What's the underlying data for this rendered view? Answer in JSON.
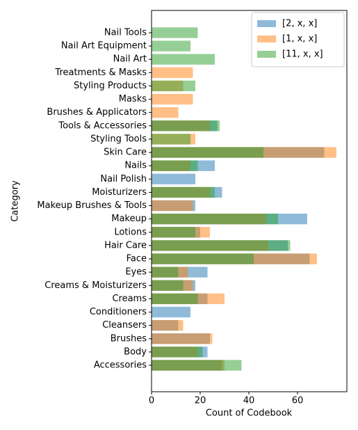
{
  "chart_data": {
    "type": "barh",
    "ylabel": "Category",
    "xlabel": "Count of Codebook",
    "categories": [
      "Accessories",
      "Body",
      "Brushes",
      "Cleansers",
      "Conditioners",
      "Creams",
      "Creams & Moisturizers",
      "Eyes",
      "Face",
      "Hair Care",
      "Lotions",
      "Makeup",
      "Makeup Brushes & Tools",
      "Moisturizers",
      "Nail Polish",
      "Nails",
      "Skin Care",
      "Styling Tools",
      "Tools & Accessories",
      "Brushes & Applicators",
      "Masks",
      "Styling Products",
      "Treatments & Masks",
      "Nail Art",
      "Nail Art Equipment",
      "Nail Tools"
    ],
    "series": [
      {
        "name": "[2, x, x]",
        "color": "#1f77b4",
        "values": [
          29,
          23,
          24,
          11,
          16,
          23,
          18,
          23,
          65,
          56,
          20,
          64,
          18,
          29,
          18,
          26,
          71,
          null,
          27,
          null,
          null,
          null,
          null,
          null,
          null,
          null
        ]
      },
      {
        "name": "[1, x, x]",
        "color": "#ff7f0e",
        "values": [
          30,
          19,
          25,
          13,
          null,
          30,
          17,
          15,
          68,
          48,
          24,
          47,
          17,
          24,
          null,
          16,
          76,
          18,
          24,
          11,
          17,
          13,
          17,
          null,
          null,
          null
        ]
      },
      {
        "name": "[11, x, x]",
        "color": "#2ca02c",
        "values": [
          37,
          21,
          null,
          null,
          null,
          19,
          13,
          11,
          42,
          57,
          18,
          52,
          null,
          26,
          null,
          19,
          46,
          16,
          28,
          null,
          null,
          18,
          null,
          26,
          16,
          19
        ]
      }
    ],
    "xlim": [
      0,
      80.3
    ],
    "xticks": [
      0,
      20,
      40,
      60
    ],
    "legend": "upper right",
    "alpha": 0.5
  }
}
